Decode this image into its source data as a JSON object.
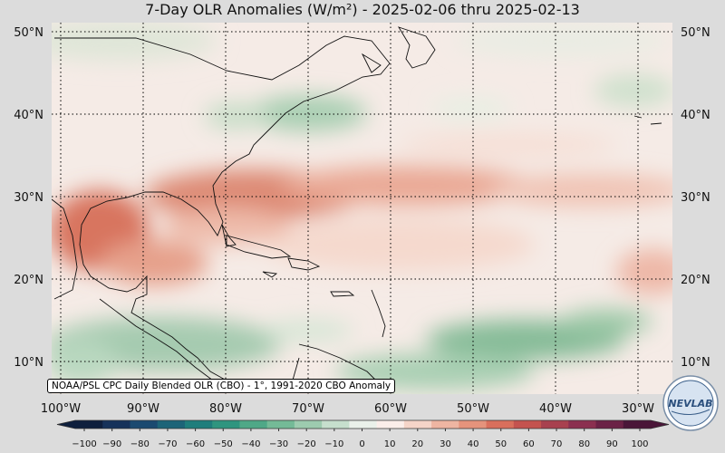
{
  "title": "7-Day OLR Anomalies (W/m²) - 2025-02-06 thru 2025-02-13",
  "credit": "NOAA/PSL CPC Daily Blended OLR (CBO) - 1°, 1991-2020 CBO Anomaly",
  "logo_text": "NEVLAB",
  "lat_labels": [
    "50°N",
    "40°N",
    "30°N",
    "20°N",
    "10°N"
  ],
  "lon_labels": [
    "100°W",
    "90°W",
    "80°W",
    "70°W",
    "60°W",
    "50°W",
    "40°W",
    "30°W"
  ],
  "colorbar": {
    "ticks": [
      "−100",
      "−90",
      "−80",
      "−70",
      "−60",
      "−50",
      "−40",
      "−30",
      "−20",
      "−10",
      "0",
      "10",
      "20",
      "30",
      "40",
      "50",
      "60",
      "70",
      "80",
      "90",
      "100"
    ],
    "colors": [
      "#0e1f3d",
      "#16325a",
      "#1b4a70",
      "#1d6478",
      "#1f7e7c",
      "#2f957f",
      "#4fa887",
      "#74ba97",
      "#9dcbaf",
      "#c6dfcd",
      "#eaf1ea",
      "#fbeeea",
      "#f5d4c8",
      "#eeb5a2",
      "#e5937c",
      "#d96f5c",
      "#c4534f",
      "#a8414f",
      "#8b3050",
      "#6b2246",
      "#4a1638"
    ]
  },
  "colors": {
    "ocean_base": "#f5ebe6",
    "negative_anomaly": "#8fc1a0",
    "positive_anomaly": "#d8715e",
    "coastline": "#111111"
  }
}
